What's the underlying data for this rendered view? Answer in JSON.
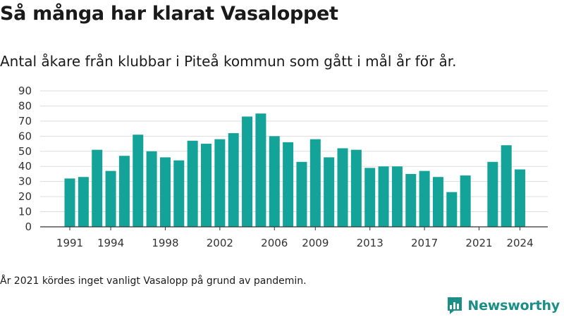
{
  "title": "Så många har klarat Vasaloppet",
  "subtitle": "Antal åkare från klubbar i Piteå kommun som gått i mål år för år.",
  "footnote": "År 2021 kördes inget vanligt Vasalopp på grund av pandemin.",
  "logo": {
    "text": "Newsworthy",
    "icon": "newsworthy-logo-icon"
  },
  "colors": {
    "bar": "#14a398",
    "grid": "#dddddd",
    "axis": "#333333",
    "brand": "#1b8f86"
  },
  "chart_data": {
    "type": "bar",
    "x": [
      1991,
      1992,
      1993,
      1994,
      1995,
      1996,
      1997,
      1998,
      1999,
      2000,
      2001,
      2002,
      2003,
      2004,
      2005,
      2006,
      2007,
      2008,
      2009,
      2010,
      2011,
      2012,
      2013,
      2014,
      2015,
      2016,
      2017,
      2018,
      2019,
      2020,
      2021,
      2022,
      2023,
      2024
    ],
    "values": [
      32,
      33,
      51,
      37,
      47,
      61,
      50,
      46,
      44,
      57,
      55,
      58,
      62,
      73,
      75,
      60,
      56,
      43,
      58,
      46,
      52,
      51,
      39,
      40,
      40,
      35,
      37,
      33,
      23,
      34,
      null,
      43,
      54,
      38
    ],
    "x_tick_labels": [
      1991,
      1994,
      1998,
      2002,
      2006,
      2009,
      2013,
      2017,
      2021,
      2024
    ],
    "y_ticks": [
      0,
      10,
      20,
      30,
      40,
      50,
      60,
      70,
      80,
      90
    ],
    "ylim": [
      0,
      90
    ],
    "grid": true,
    "legend": "none"
  }
}
